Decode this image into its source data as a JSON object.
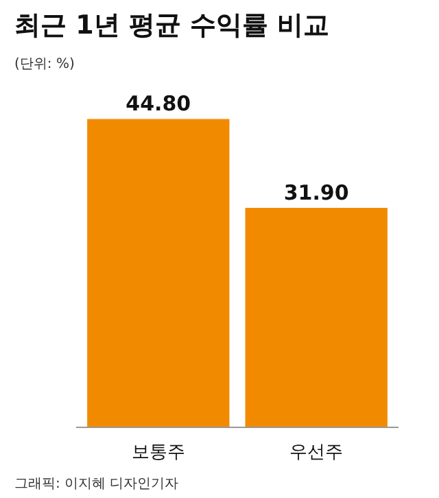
{
  "chart_data": {
    "type": "bar",
    "title": "최근 1년 평균 수익률 비교",
    "subtitle": "(단위: %)",
    "categories": [
      "보통주",
      "우선주"
    ],
    "values": [
      44.8,
      31.9
    ],
    "value_labels": [
      "44.80",
      "31.90"
    ],
    "color": "#f28a00",
    "annotations": [
      "그래픽: 이지혜 디자인기자"
    ],
    "grid": false
  }
}
